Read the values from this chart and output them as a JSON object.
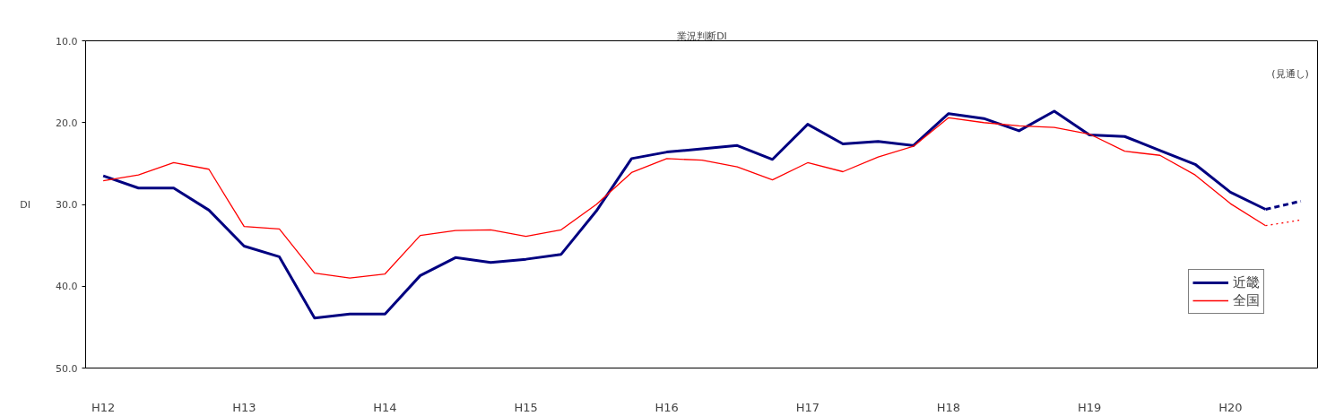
{
  "chart_data": {
    "type": "line",
    "title": "業況判断DI",
    "ylabel": "DI",
    "categories": [
      "H12",
      null,
      null,
      null,
      "H13",
      null,
      null,
      null,
      "H14",
      null,
      null,
      null,
      "H15",
      null,
      null,
      null,
      "H16",
      null,
      null,
      null,
      "H17",
      null,
      null,
      null,
      "H18",
      null,
      null,
      null,
      "H19",
      null,
      null,
      null,
      "H20",
      null,
      null
    ],
    "series": [
      {
        "name": "近畿",
        "color": "#000080",
        "line_style": "solid",
        "values": [
          26.5,
          28.0,
          28.0,
          30.7,
          35.1,
          36.4,
          43.9,
          43.4,
          43.4,
          38.7,
          36.5,
          37.1,
          36.7,
          36.1,
          30.8,
          24.4,
          23.6,
          23.2,
          22.8,
          24.5,
          20.2,
          22.6,
          22.3,
          22.8,
          18.9,
          19.5,
          21.0,
          18.6,
          21.5,
          21.7,
          23.4,
          25.1,
          28.5,
          30.6,
          null
        ]
      },
      {
        "name": "全国",
        "color": "#ff0000",
        "line_style": "solid",
        "values": [
          27.1,
          26.4,
          24.9,
          25.7,
          32.7,
          33.0,
          38.4,
          39.0,
          38.5,
          33.8,
          33.2,
          33.1,
          33.9,
          33.1,
          30.0,
          26.1,
          24.4,
          24.6,
          25.4,
          27.0,
          24.9,
          26.0,
          24.2,
          22.9,
          19.4,
          20.0,
          20.4,
          20.6,
          21.4,
          23.5,
          24.0,
          26.4,
          29.9,
          32.6,
          null
        ]
      },
      {
        "color": "#000080",
        "line_style": "dashed",
        "values": [
          null,
          null,
          null,
          null,
          null,
          null,
          null,
          null,
          null,
          null,
          null,
          null,
          null,
          null,
          null,
          null,
          null,
          null,
          null,
          null,
          null,
          null,
          null,
          null,
          null,
          null,
          null,
          null,
          null,
          null,
          null,
          null,
          null,
          30.6,
          29.6
        ]
      },
      {
        "color": "#ff0000",
        "line_style": "dotted",
        "values": [
          null,
          null,
          null,
          null,
          null,
          null,
          null,
          null,
          null,
          null,
          null,
          null,
          null,
          null,
          null,
          null,
          null,
          null,
          null,
          null,
          null,
          null,
          null,
          null,
          null,
          null,
          null,
          null,
          null,
          null,
          null,
          null,
          null,
          32.6,
          31.9
        ]
      }
    ],
    "ylim": [
      50,
      10
    ],
    "yticks": [
      {
        "value": 10,
        "label": "10.0"
      },
      {
        "value": 20,
        "label": "20.0"
      },
      {
        "value": 30,
        "label": "30.0"
      },
      {
        "value": 40,
        "label": "40.0"
      },
      {
        "value": 50,
        "label": "50.0"
      }
    ],
    "annotations": [
      "(見通し)"
    ],
    "grid": false,
    "legend": "bottom right",
    "marker": "none"
  }
}
